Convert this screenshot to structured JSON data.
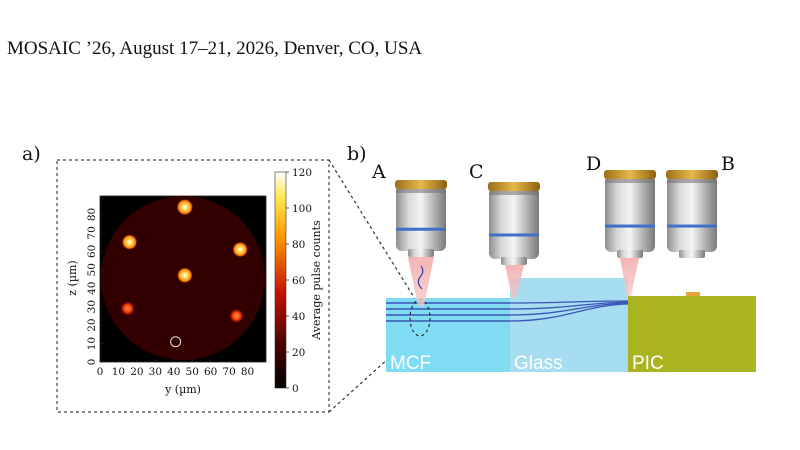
{
  "header": {
    "venue": "MOSAIC ’26, August 17–21, 2026, Denver, CO, USA"
  },
  "panel_a": {
    "label": "a)",
    "chart_data": {
      "type": "heatmap",
      "xlabel": "y (µm)",
      "ylabel": "z (µm)",
      "colorbar_label": "Average pulse counts",
      "xticks": [
        "0",
        "10",
        "20",
        "30",
        "40",
        "50",
        "60",
        "70",
        "80"
      ],
      "yticks": [
        "0",
        "10",
        "20",
        "30",
        "40",
        "50",
        "60",
        "70",
        "80"
      ],
      "colorbar_ticks": [
        "0",
        "20",
        "40",
        "60",
        "80",
        "100",
        "120"
      ],
      "xlim": [
        0,
        90
      ],
      "ylim": [
        0,
        90
      ],
      "clim": [
        0,
        120
      ],
      "points": [
        {
          "y": 46,
          "z": 84,
          "counts": 120
        },
        {
          "y": 16,
          "z": 65,
          "counts": 100
        },
        {
          "y": 76,
          "z": 61,
          "counts": 100
        },
        {
          "y": 46,
          "z": 47,
          "counts": 105
        },
        {
          "y": 15,
          "z": 29,
          "counts": 75
        },
        {
          "y": 74,
          "z": 25,
          "counts": 75
        },
        {
          "y": 41,
          "z": 11,
          "counts": 0
        }
      ]
    }
  },
  "panel_b": {
    "label": "b)",
    "objectives": [
      "A",
      "C",
      "D",
      "B"
    ],
    "blocks": [
      "MCF",
      "Glass",
      "PIC"
    ]
  },
  "colors": {
    "mcf": "#7fdcf3",
    "glass": "#a7ddf0",
    "pic": "#aab320",
    "waveguide": "#3b55b8",
    "beam": "#f3b4b4",
    "objective_ring": "#c7962c",
    "objective_band": "#3f6fc8"
  }
}
